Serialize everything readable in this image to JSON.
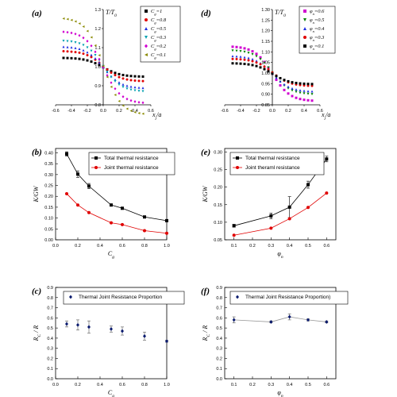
{
  "chart_data": [
    {
      "id": "a",
      "panel_label": "(a)",
      "type": "scatter",
      "ylabel": "T/T0",
      "xlabel": "xj/a",
      "xlim": [
        -0.6,
        0.6
      ],
      "ylim": [
        0.8,
        1.3
      ],
      "xticks": [
        -0.6,
        -0.4,
        -0.2,
        0.0,
        0.2,
        0.4,
        0.6
      ],
      "xtick_labels": [
        "-0.6",
        "-0.4",
        "-0.2",
        "0.0",
        "0.2",
        "0.4",
        "0.6"
      ],
      "yticks": [
        0.8,
        0.9,
        1.0,
        1.1,
        1.2,
        1.3
      ],
      "ytick_labels": [
        "0.8",
        "0.9",
        "1.0",
        "1.1",
        "1.2",
        "1.3"
      ],
      "legend_position": "top-right",
      "series": [
        {
          "name": "Cg=1",
          "color": "#000000",
          "marker": "square",
          "amp": 0.05
        },
        {
          "name": "Cg=0.8",
          "color": "#e00000",
          "marker": "circle",
          "amp": 0.08
        },
        {
          "name": "Cg=0.5",
          "color": "#1f2ee0",
          "marker": "triangle-up",
          "amp": 0.11
        },
        {
          "name": "Cg=0.3",
          "color": "#00a0b0",
          "marker": "triangle-down",
          "amp": 0.135
        },
        {
          "name": "Cg=0.2",
          "color": "#d000d0",
          "marker": "diamond",
          "amp": 0.19
        },
        {
          "name": "Cg=0.1",
          "color": "#8a8a00",
          "marker": "triangle-left",
          "amp": 0.255
        }
      ]
    },
    {
      "id": "d",
      "panel_label": "(d)",
      "type": "scatter",
      "ylabel": "T/T0",
      "xlabel": "xj/a",
      "xlim": [
        -0.6,
        0.6
      ],
      "ylim": [
        0.85,
        1.3
      ],
      "xticks": [
        -0.6,
        -0.4,
        -0.2,
        0.0,
        0.2,
        0.4,
        0.6
      ],
      "xtick_labels": [
        "-0.6",
        "-0.4",
        "-0.2",
        "0.0",
        "0.2",
        "0.4",
        "0.6"
      ],
      "yticks": [
        0.85,
        0.9,
        0.95,
        1.0,
        1.05,
        1.1,
        1.15,
        1.2,
        1.25,
        1.3
      ],
      "ytick_labels": [
        "0.85",
        "0.90",
        "0.95",
        "1.00",
        "1.05",
        "1.10",
        "1.15",
        "1.20",
        "1.25",
        "1.30"
      ],
      "legend_position": "top-right",
      "series": [
        {
          "name": "φn=0.6",
          "color": "#d000d0",
          "marker": "square",
          "amp": 0.13
        },
        {
          "name": "φn=0.5",
          "color": "#008000",
          "marker": "triangle-down",
          "amp": 0.105
        },
        {
          "name": "φn=0.4",
          "color": "#1f2ee0",
          "marker": "triangle-up",
          "amp": 0.085
        },
        {
          "name": "φn=0.3",
          "color": "#e00000",
          "marker": "circle",
          "amp": 0.065
        },
        {
          "name": "φn=0.1",
          "color": "#000000",
          "marker": "square",
          "amp": 0.05
        }
      ]
    },
    {
      "id": "b",
      "panel_label": "(b)",
      "type": "line",
      "ylabel": "K/GW",
      "xlabel": "Cg",
      "xlim": [
        0.0,
        1.0
      ],
      "ylim": [
        0.0,
        0.42
      ],
      "xticks": [
        0.0,
        0.2,
        0.4,
        0.6,
        0.8,
        1.0
      ],
      "xtick_labels": [
        "0.0",
        "0.2",
        "0.4",
        "0.6",
        "0.8",
        "1.0"
      ],
      "yticks": [
        0.0,
        0.05,
        0.1,
        0.15,
        0.2,
        0.25,
        0.3,
        0.35,
        0.4
      ],
      "ytick_labels": [
        "0.00",
        "0.05",
        "0.10",
        "0.15",
        "0.20",
        "0.25",
        "0.30",
        "0.35",
        "0.40"
      ],
      "legend_position": "top-right",
      "x": [
        0.1,
        0.2,
        0.3,
        0.5,
        0.6,
        0.8,
        1.0
      ],
      "series": [
        {
          "name": "Total thermal resistance",
          "color": "#000000",
          "marker": "square",
          "values": [
            0.395,
            0.302,
            0.247,
            0.16,
            0.145,
            0.105,
            0.088
          ],
          "errors": [
            0.01,
            0.015,
            0.012,
            0.005,
            0.005,
            0.004,
            0.003
          ]
        },
        {
          "name": "Joint thermal resistance",
          "color": "#e00000",
          "marker": "circle",
          "values": [
            0.212,
            0.16,
            0.125,
            0.078,
            0.07,
            0.042,
            0.03
          ]
        }
      ]
    },
    {
      "id": "e",
      "panel_label": "(e)",
      "type": "line",
      "ylabel": "K/GW",
      "xlabel": "φn",
      "xlim": [
        0.05,
        0.65
      ],
      "ylim": [
        0.05,
        0.31
      ],
      "xticks": [
        0.1,
        0.2,
        0.3,
        0.4,
        0.5,
        0.6
      ],
      "xtick_labels": [
        "0.1",
        "0.2",
        "0.3",
        "0.4",
        "0.5",
        "0.6"
      ],
      "yticks": [
        0.05,
        0.1,
        0.15,
        0.2,
        0.25,
        0.3
      ],
      "ytick_labels": [
        "0.05",
        "0.10",
        "0.15",
        "0.20",
        "0.25",
        "0.30"
      ],
      "legend_position": "top-left",
      "x": [
        0.1,
        0.3,
        0.4,
        0.5,
        0.6
      ],
      "series": [
        {
          "name": "Total thermal resistance",
          "color": "#000000",
          "marker": "square",
          "values": [
            0.09,
            0.118,
            0.143,
            0.207,
            0.28
          ],
          "errors": [
            0.004,
            0.008,
            0.03,
            0.01,
            0.008
          ]
        },
        {
          "name": "Joint theraml resistance",
          "color": "#e00000",
          "marker": "circle",
          "values": [
            0.063,
            0.083,
            0.11,
            0.142,
            0.183
          ]
        }
      ]
    },
    {
      "id": "c",
      "panel_label": "(c)",
      "type": "scatter",
      "ylabel": "RC / R",
      "xlabel": "Cg",
      "xlim": [
        0.0,
        1.0
      ],
      "ylim": [
        0.0,
        0.9
      ],
      "xticks": [
        0.0,
        0.2,
        0.4,
        0.6,
        0.8,
        1.0
      ],
      "xtick_labels": [
        "0.0",
        "0.2",
        "0.4",
        "0.6",
        "0.8",
        "1.0"
      ],
      "yticks": [
        0.0,
        0.1,
        0.2,
        0.3,
        0.4,
        0.5,
        0.6,
        0.7,
        0.8,
        0.9
      ],
      "ytick_labels": [
        "0.0",
        "0.1",
        "0.2",
        "0.3",
        "0.4",
        "0.5",
        "0.6",
        "0.7",
        "0.8",
        "0.9"
      ],
      "legend_position": "top",
      "x": [
        0.1,
        0.2,
        0.3,
        0.5,
        0.6,
        0.8,
        1.0
      ],
      "series": [
        {
          "name": "Thermal Joint Resistance Proportion",
          "color": "#0a1a6e",
          "marker": "diamond",
          "values": [
            0.54,
            0.53,
            0.51,
            0.49,
            0.47,
            0.42,
            0.37
          ],
          "errors": [
            0.03,
            0.05,
            0.06,
            0.03,
            0.04,
            0.04,
            0.01
          ]
        }
      ]
    },
    {
      "id": "f",
      "panel_label": "(f)",
      "type": "line",
      "ylabel": "RC / R",
      "xlabel": "φn",
      "xlim": [
        0.05,
        0.65
      ],
      "ylim": [
        0.0,
        0.9
      ],
      "xticks": [
        0.1,
        0.2,
        0.3,
        0.4,
        0.5,
        0.6
      ],
      "xtick_labels": [
        "0.1",
        "0.2",
        "0.3",
        "0.4",
        "0.5",
        "0.6"
      ],
      "yticks": [
        0.0,
        0.1,
        0.2,
        0.3,
        0.4,
        0.5,
        0.6,
        0.7,
        0.8,
        0.9
      ],
      "ytick_labels": [
        "0.0",
        "0.1",
        "0.2",
        "0.3",
        "0.4",
        "0.5",
        "0.6",
        "0.7",
        "0.8",
        "0.9"
      ],
      "legend_position": "top",
      "x": [
        0.1,
        0.3,
        0.4,
        0.5,
        0.6
      ],
      "series": [
        {
          "name": "Thermal Joint Resistance Proportion)",
          "color": "#0a1a6e",
          "marker": "diamond",
          "values": [
            0.58,
            0.56,
            0.61,
            0.58,
            0.56
          ],
          "errors": [
            0.03,
            0.01,
            0.03,
            0.01,
            0.01
          ]
        }
      ]
    }
  ]
}
